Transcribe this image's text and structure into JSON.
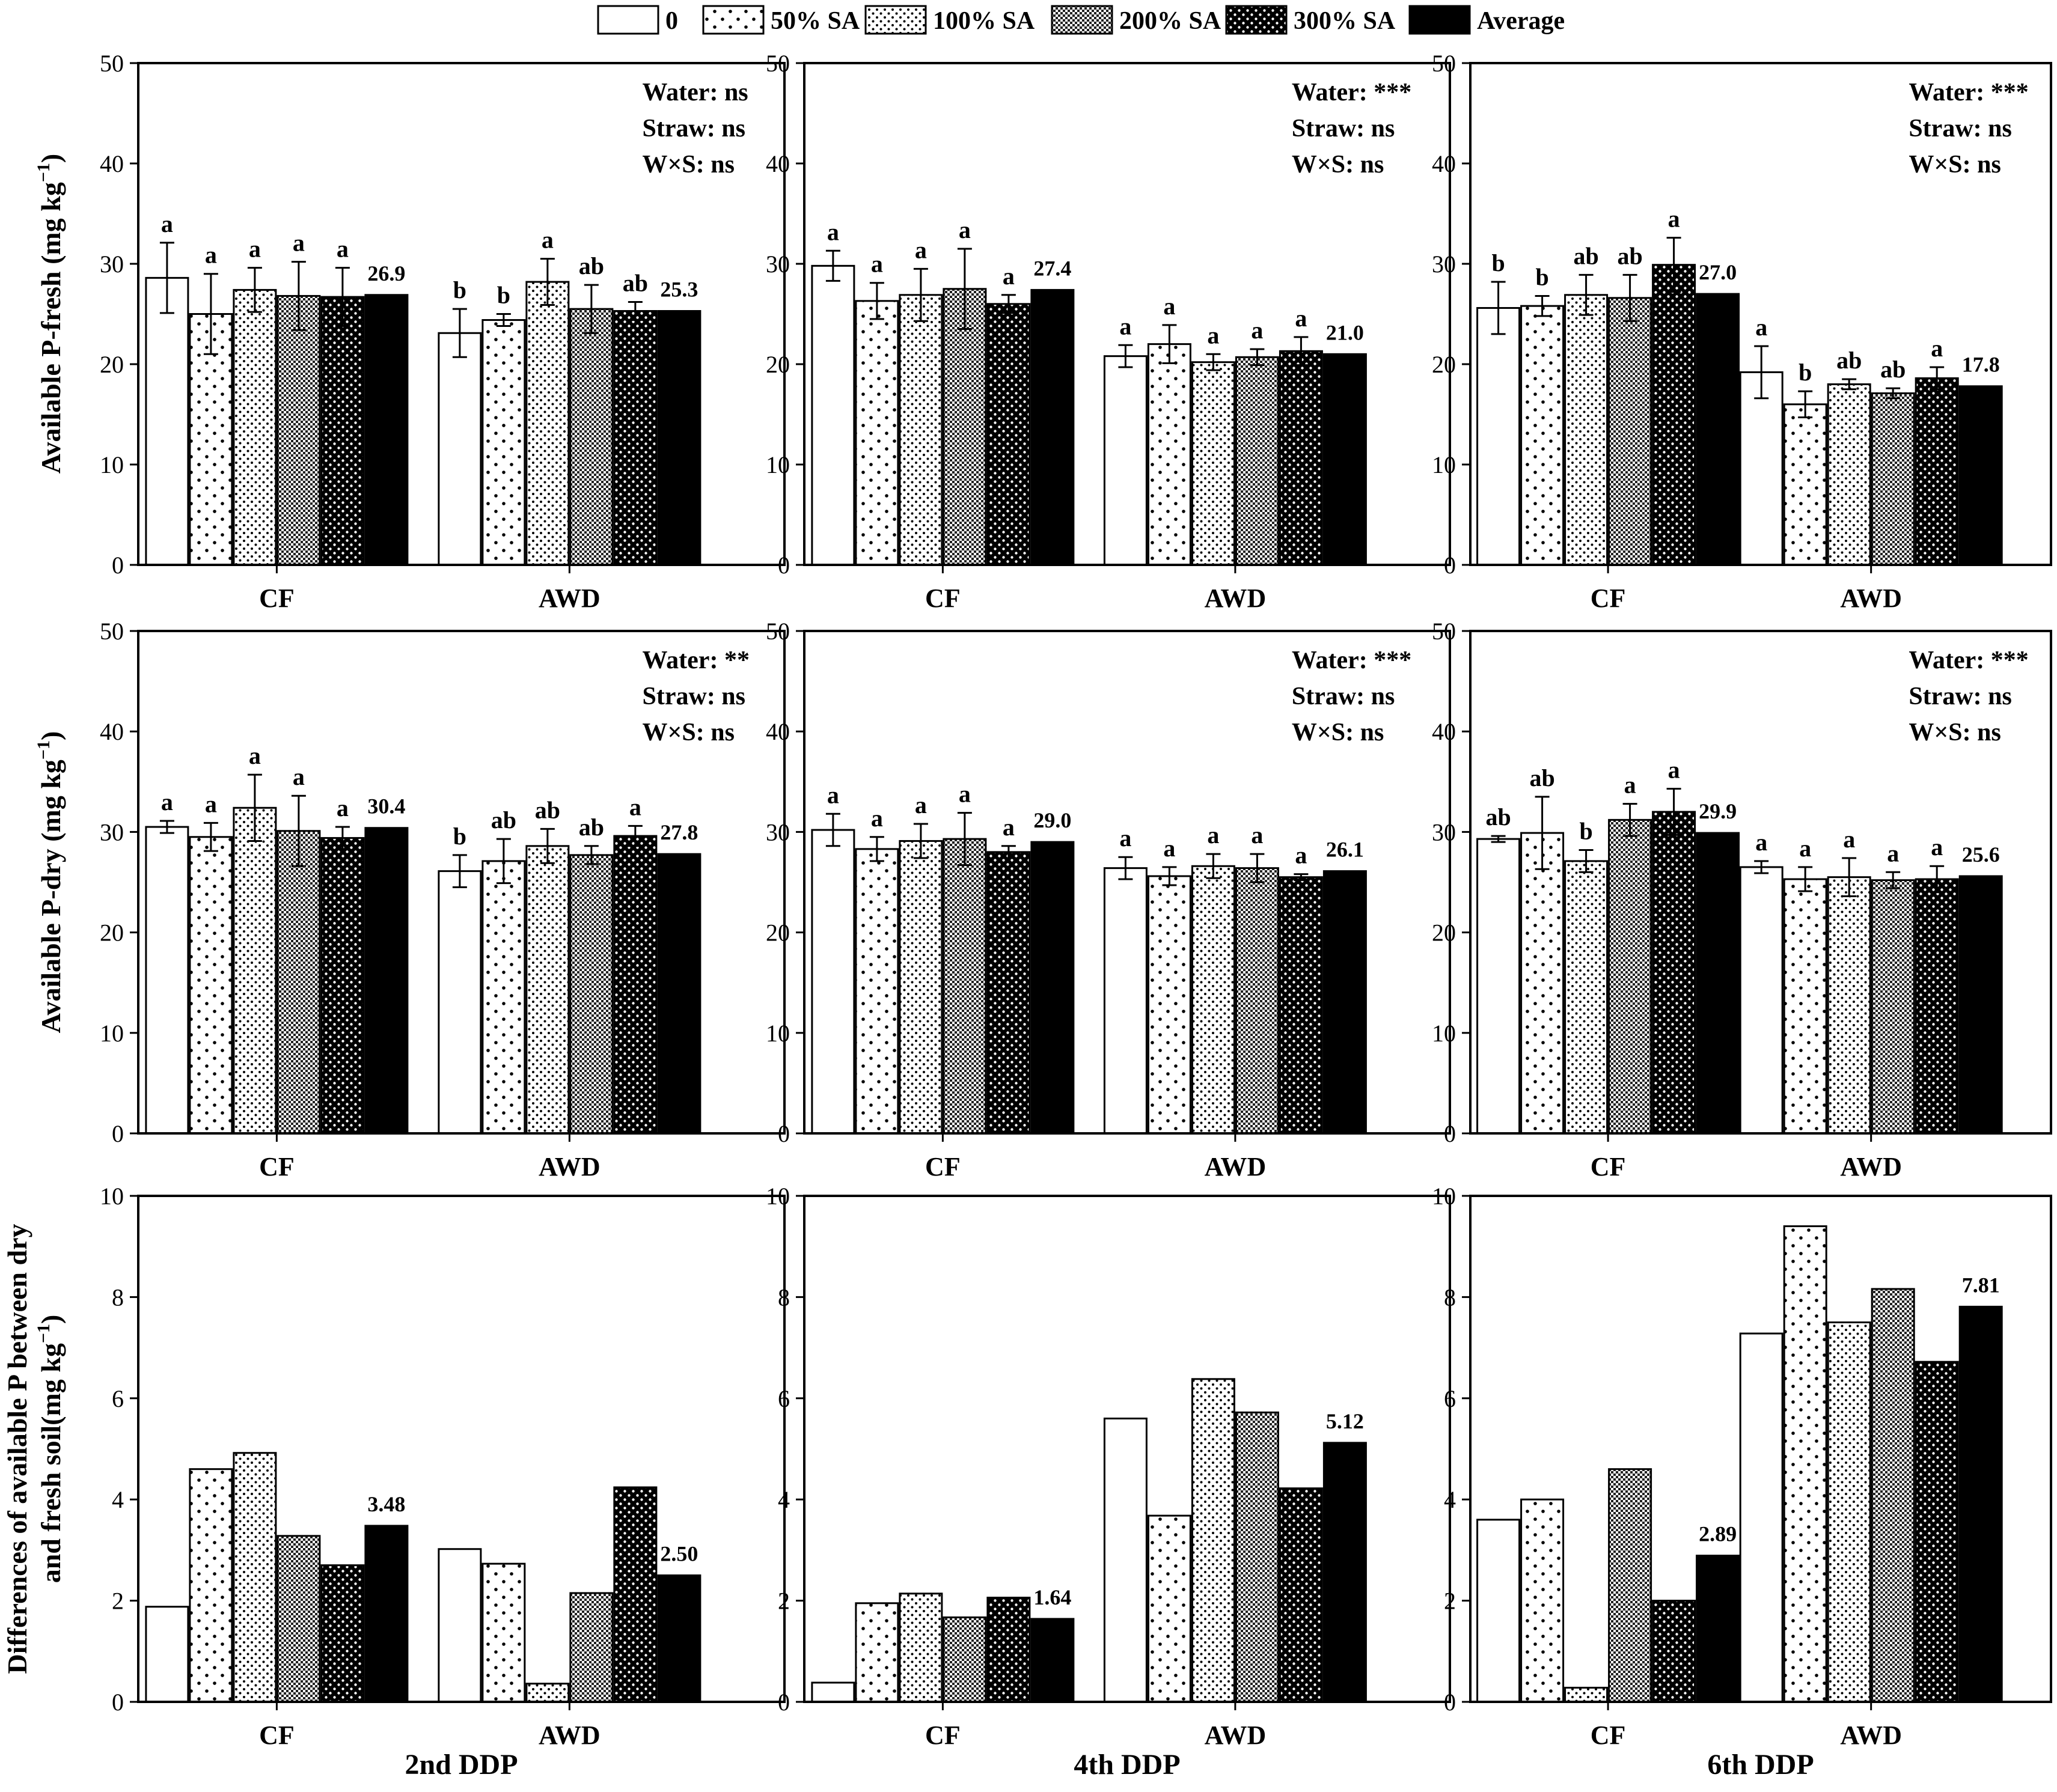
{
  "legend": [
    "0",
    "50% SA",
    "100% SA",
    "200% SA",
    "300% SA",
    "Average"
  ],
  "patterns": [
    "white",
    "sparse-dots",
    "dense-dots",
    "checker",
    "dark-dots",
    "black"
  ],
  "column_labels": [
    "2nd DDP",
    "4th DDP",
    "6th DDP"
  ],
  "row_ylabels": [
    [
      "Available P-fresh (mg kg",
      "−1",
      ")"
    ],
    [
      "Available P-dry (mg kg",
      "−1",
      ")"
    ],
    [
      "Differences of available P between  dry",
      "and fresh soil(mg kg",
      "−1",
      ")"
    ]
  ],
  "chart_data": [
    {
      "type": "bar",
      "row": 0,
      "col": 0,
      "categories": [
        "CF",
        "AWD"
      ],
      "ylim": [
        0,
        50
      ],
      "yticks": [
        0,
        10,
        20,
        30,
        40,
        50
      ],
      "series": [
        {
          "name": "0",
          "values": [
            28.6,
            23.1
          ]
        },
        {
          "name": "50% SA",
          "values": [
            25.0,
            24.4
          ]
        },
        {
          "name": "100% SA",
          "values": [
            27.4,
            28.2
          ]
        },
        {
          "name": "200% SA",
          "values": [
            26.8,
            25.5
          ]
        },
        {
          "name": "300% SA",
          "values": [
            26.7,
            25.3
          ]
        },
        {
          "name": "Average",
          "values": [
            26.9,
            25.3
          ]
        }
      ],
      "errors": [
        [
          3.5,
          2.4
        ],
        [
          4.0,
          0.6
        ],
        [
          2.2,
          2.3
        ],
        [
          3.4,
          2.4
        ],
        [
          2.9,
          0.9
        ],
        [
          null,
          null
        ]
      ],
      "letters": [
        [
          "a",
          "b"
        ],
        [
          "a",
          "b"
        ],
        [
          "a",
          "a"
        ],
        [
          "a",
          "ab"
        ],
        [
          "a",
          "ab"
        ],
        [
          null,
          null
        ]
      ],
      "average_labels": [
        "26.9",
        "25.3"
      ],
      "stats": [
        "Water: ns",
        "Straw: ns",
        "W×S: ns"
      ]
    },
    {
      "type": "bar",
      "row": 0,
      "col": 1,
      "categories": [
        "CF",
        "AWD"
      ],
      "ylim": [
        0,
        50
      ],
      "yticks": [
        0,
        10,
        20,
        30,
        40,
        50
      ],
      "series": [
        {
          "name": "0",
          "values": [
            29.8,
            20.8
          ]
        },
        {
          "name": "50% SA",
          "values": [
            26.3,
            22.0
          ]
        },
        {
          "name": "100% SA",
          "values": [
            26.9,
            20.2
          ]
        },
        {
          "name": "200% SA",
          "values": [
            27.5,
            20.7
          ]
        },
        {
          "name": "300% SA",
          "values": [
            26.0,
            21.3
          ]
        },
        {
          "name": "Average",
          "values": [
            27.4,
            21.0
          ]
        }
      ],
      "errors": [
        [
          1.5,
          1.1
        ],
        [
          1.8,
          1.9
        ],
        [
          2.6,
          0.8
        ],
        [
          4.0,
          0.8
        ],
        [
          0.9,
          1.4
        ],
        [
          null,
          null
        ]
      ],
      "letters": [
        [
          "a",
          "a"
        ],
        [
          "a",
          "a"
        ],
        [
          "a",
          "a"
        ],
        [
          "a",
          "a"
        ],
        [
          "a",
          "a"
        ],
        [
          null,
          null
        ]
      ],
      "average_labels": [
        "27.4",
        "21.0"
      ],
      "stats": [
        "Water: ***",
        "Straw: ns",
        "W×S: ns"
      ]
    },
    {
      "type": "bar",
      "row": 0,
      "col": 2,
      "categories": [
        "CF",
        "AWD"
      ],
      "ylim": [
        0,
        50
      ],
      "yticks": [
        0,
        10,
        20,
        30,
        40,
        50
      ],
      "series": [
        {
          "name": "0",
          "values": [
            25.6,
            19.2
          ]
        },
        {
          "name": "50% SA",
          "values": [
            25.8,
            16.0
          ]
        },
        {
          "name": "100% SA",
          "values": [
            26.9,
            18.0
          ]
        },
        {
          "name": "200% SA",
          "values": [
            26.6,
            17.1
          ]
        },
        {
          "name": "300% SA",
          "values": [
            29.9,
            18.6
          ]
        },
        {
          "name": "Average",
          "values": [
            27.0,
            17.8
          ]
        }
      ],
      "errors": [
        [
          2.6,
          2.6
        ],
        [
          1.0,
          1.3
        ],
        [
          2.0,
          0.5
        ],
        [
          2.3,
          0.5
        ],
        [
          2.7,
          1.1
        ],
        [
          null,
          null
        ]
      ],
      "letters": [
        [
          "b",
          "a"
        ],
        [
          "b",
          "b"
        ],
        [
          "ab",
          "ab"
        ],
        [
          "ab",
          "ab"
        ],
        [
          "a",
          "a"
        ],
        [
          null,
          null
        ]
      ],
      "average_labels": [
        "27.0",
        "17.8"
      ],
      "stats": [
        "Water: ***",
        "Straw: ns",
        "W×S: ns"
      ]
    },
    {
      "type": "bar",
      "row": 1,
      "col": 0,
      "categories": [
        "CF",
        "AWD"
      ],
      "ylim": [
        0,
        50
      ],
      "yticks": [
        0,
        10,
        20,
        30,
        40,
        50
      ],
      "series": [
        {
          "name": "0",
          "values": [
            30.5,
            26.1
          ]
        },
        {
          "name": "50% SA",
          "values": [
            29.5,
            27.1
          ]
        },
        {
          "name": "100% SA",
          "values": [
            32.4,
            28.6
          ]
        },
        {
          "name": "200% SA",
          "values": [
            30.1,
            27.7
          ]
        },
        {
          "name": "300% SA",
          "values": [
            29.4,
            29.6
          ]
        },
        {
          "name": "Average",
          "values": [
            30.4,
            27.8
          ]
        }
      ],
      "errors": [
        [
          0.6,
          1.6
        ],
        [
          1.4,
          2.2
        ],
        [
          3.3,
          1.7
        ],
        [
          3.5,
          0.9
        ],
        [
          1.1,
          1.0
        ],
        [
          null,
          null
        ]
      ],
      "letters": [
        [
          "a",
          "b"
        ],
        [
          "a",
          "ab"
        ],
        [
          "a",
          "ab"
        ],
        [
          "a",
          "ab"
        ],
        [
          "a",
          "a"
        ],
        [
          null,
          null
        ]
      ],
      "average_labels": [
        "30.4",
        "27.8"
      ],
      "stats": [
        "Water: **",
        "Straw: ns",
        "W×S: ns"
      ]
    },
    {
      "type": "bar",
      "row": 1,
      "col": 1,
      "categories": [
        "CF",
        "AWD"
      ],
      "ylim": [
        0,
        50
      ],
      "yticks": [
        0,
        10,
        20,
        30,
        40,
        50
      ],
      "series": [
        {
          "name": "0",
          "values": [
            30.2,
            26.4
          ]
        },
        {
          "name": "50% SA",
          "values": [
            28.3,
            25.6
          ]
        },
        {
          "name": "100% SA",
          "values": [
            29.1,
            26.6
          ]
        },
        {
          "name": "200% SA",
          "values": [
            29.3,
            26.4
          ]
        },
        {
          "name": "300% SA",
          "values": [
            28.0,
            25.5
          ]
        },
        {
          "name": "Average",
          "values": [
            29.0,
            26.1
          ]
        }
      ],
      "errors": [
        [
          1.6,
          1.1
        ],
        [
          1.2,
          0.9
        ],
        [
          1.7,
          1.2
        ],
        [
          2.6,
          1.4
        ],
        [
          0.6,
          0.3
        ],
        [
          null,
          null
        ]
      ],
      "letters": [
        [
          "a",
          "a"
        ],
        [
          "a",
          "a"
        ],
        [
          "a",
          "a"
        ],
        [
          "a",
          "a"
        ],
        [
          "a",
          "a"
        ],
        [
          null,
          null
        ]
      ],
      "average_labels": [
        "29.0",
        "26.1"
      ],
      "stats": [
        "Water: ***",
        "Straw: ns",
        "W×S: ns"
      ]
    },
    {
      "type": "bar",
      "row": 1,
      "col": 2,
      "categories": [
        "CF",
        "AWD"
      ],
      "ylim": [
        0,
        50
      ],
      "yticks": [
        0,
        10,
        20,
        30,
        40,
        50
      ],
      "series": [
        {
          "name": "0",
          "values": [
            29.3,
            26.5
          ]
        },
        {
          "name": "50% SA",
          "values": [
            29.9,
            25.3
          ]
        },
        {
          "name": "100% SA",
          "values": [
            27.1,
            25.5
          ]
        },
        {
          "name": "200% SA",
          "values": [
            31.2,
            25.2
          ]
        },
        {
          "name": "300% SA",
          "values": [
            32.0,
            25.3
          ]
        },
        {
          "name": "Average",
          "values": [
            29.9,
            25.6
          ]
        }
      ],
      "errors": [
        [
          0.3,
          0.6
        ],
        [
          3.6,
          1.2
        ],
        [
          1.1,
          1.9
        ],
        [
          1.6,
          0.8
        ],
        [
          2.3,
          1.3
        ],
        [
          null,
          null
        ]
      ],
      "letters": [
        [
          "ab",
          "a"
        ],
        [
          "ab",
          "a"
        ],
        [
          "b",
          "a"
        ],
        [
          "a",
          "a"
        ],
        [
          "a",
          "a"
        ],
        [
          null,
          null
        ]
      ],
      "average_labels": [
        "29.9",
        "25.6"
      ],
      "stats": [
        "Water: ***",
        "Straw: ns",
        "W×S: ns"
      ]
    },
    {
      "type": "bar",
      "row": 2,
      "col": 0,
      "categories": [
        "CF",
        "AWD"
      ],
      "ylim": [
        0,
        10
      ],
      "yticks": [
        0,
        2,
        4,
        6,
        8,
        10
      ],
      "series": [
        {
          "name": "0",
          "values": [
            1.88,
            3.02
          ]
        },
        {
          "name": "50% SA",
          "values": [
            4.6,
            2.73
          ]
        },
        {
          "name": "100% SA",
          "values": [
            4.92,
            0.36
          ]
        },
        {
          "name": "200% SA",
          "values": [
            3.28,
            2.15
          ]
        },
        {
          "name": "300% SA",
          "values": [
            2.7,
            4.24
          ]
        },
        {
          "name": "Average",
          "values": [
            3.48,
            2.5
          ]
        }
      ],
      "average_labels": [
        "3.48",
        "2.50"
      ]
    },
    {
      "type": "bar",
      "row": 2,
      "col": 1,
      "categories": [
        "CF",
        "AWD"
      ],
      "ylim": [
        0,
        10
      ],
      "yticks": [
        0,
        2,
        4,
        6,
        8,
        10
      ],
      "series": [
        {
          "name": "0",
          "values": [
            0.38,
            5.6
          ]
        },
        {
          "name": "50% SA",
          "values": [
            1.95,
            3.68
          ]
        },
        {
          "name": "100% SA",
          "values": [
            2.14,
            6.38
          ]
        },
        {
          "name": "200% SA",
          "values": [
            1.67,
            5.72
          ]
        },
        {
          "name": "300% SA",
          "values": [
            2.06,
            4.22
          ]
        },
        {
          "name": "Average",
          "values": [
            1.64,
            5.12
          ]
        }
      ],
      "average_labels": [
        "1.64",
        "5.12"
      ]
    },
    {
      "type": "bar",
      "row": 2,
      "col": 2,
      "categories": [
        "CF",
        "AWD"
      ],
      "ylim": [
        0,
        10
      ],
      "yticks": [
        0,
        2,
        4,
        6,
        8,
        10
      ],
      "series": [
        {
          "name": "0",
          "values": [
            3.6,
            7.28
          ]
        },
        {
          "name": "50% SA",
          "values": [
            4.0,
            9.4
          ]
        },
        {
          "name": "100% SA",
          "values": [
            0.28,
            7.5
          ]
        },
        {
          "name": "200% SA",
          "values": [
            4.6,
            8.16
          ]
        },
        {
          "name": "300% SA",
          "values": [
            2.0,
            6.72
          ]
        },
        {
          "name": "Average",
          "values": [
            2.89,
            7.81
          ]
        }
      ],
      "average_labels": [
        "2.89",
        "7.81"
      ]
    }
  ]
}
